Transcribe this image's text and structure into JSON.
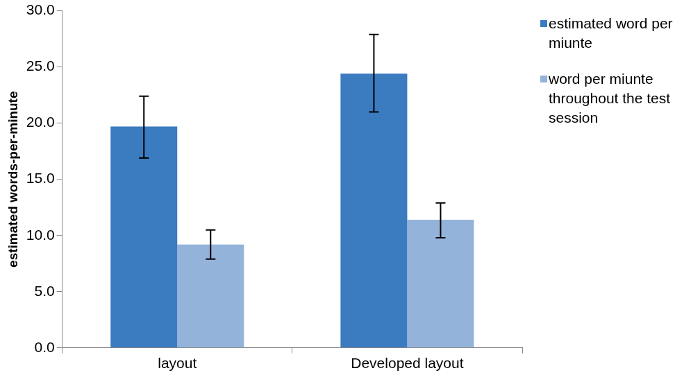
{
  "chart_data": {
    "type": "bar",
    "ylabel": "estimated words-per-minute",
    "categories": [
      "layout",
      "Developed layout"
    ],
    "series": [
      {
        "name": "estimated word per miunte",
        "color": "#3b7bc0",
        "values": [
          19.7,
          24.4
        ],
        "errors": [
          [
            16.9,
            22.4
          ],
          [
            21.0,
            27.9
          ]
        ]
      },
      {
        "name": "word per miunte throughout the test session",
        "color": "#94b3da",
        "values": [
          9.2,
          11.4
        ],
        "errors": [
          [
            7.9,
            10.5
          ],
          [
            9.8,
            12.9
          ]
        ]
      }
    ],
    "ylim": [
      0,
      30
    ],
    "yticks": [
      {
        "value": 0,
        "label": "0.0"
      },
      {
        "value": 5,
        "label": "5.0"
      },
      {
        "value": 10,
        "label": "10.0"
      },
      {
        "value": 15,
        "label": "15.0"
      },
      {
        "value": 20,
        "label": "20.0"
      },
      {
        "value": 25,
        "label": "25.0"
      },
      {
        "value": 30,
        "label": "30.0"
      }
    ],
    "grid": false,
    "legend": "right"
  }
}
